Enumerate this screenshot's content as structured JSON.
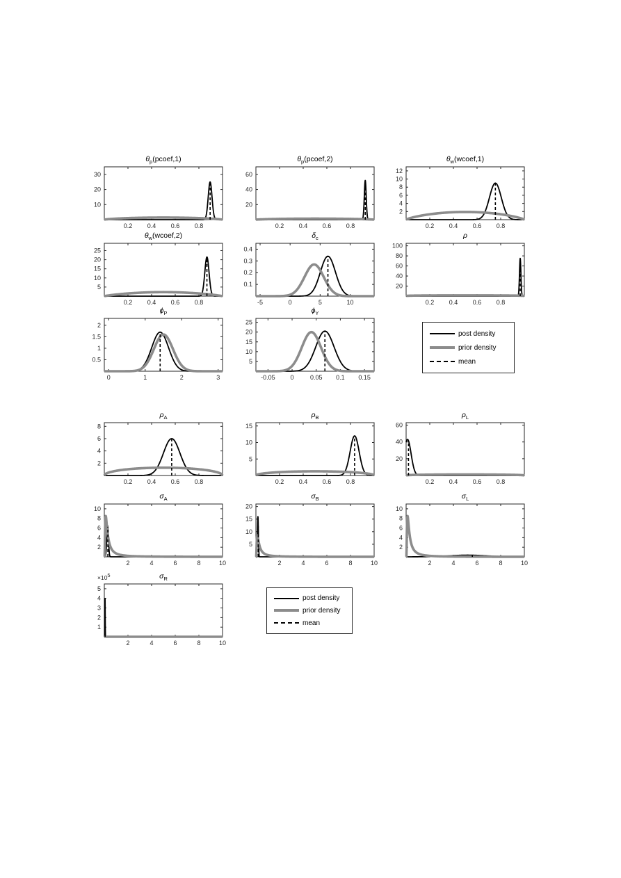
{
  "colors": {
    "post": "#000000",
    "prior": "#8c8c8c",
    "mean": "#000000",
    "axis": "#262626",
    "background": "#ffffff"
  },
  "legend": {
    "entries": [
      {
        "id": "post",
        "label": "post density"
      },
      {
        "id": "prior",
        "label": "prior density"
      },
      {
        "id": "mean",
        "label": "mean"
      }
    ]
  },
  "chart_data": {
    "type": "line",
    "description": "Grid of prior and posterior parameter density subplots with posterior-mean markers (Bayesian estimation output)",
    "legend_entries": [
      "post density",
      "prior density",
      "mean"
    ],
    "plots": [
      {
        "id": "theta-p-pcoef-1",
        "title": [
          {
            "t": "θ",
            "i": 1
          },
          {
            "t": "p",
            "sub": 1
          },
          {
            "t": "(pcoef,1)"
          }
        ],
        "xlim": [
          0,
          1
        ],
        "ylim": [
          0,
          35
        ],
        "xticks": [
          {
            "v": 0.2,
            "l": "0.2"
          },
          {
            "v": 0.4,
            "l": "0.4"
          },
          {
            "v": 0.6,
            "l": "0.6"
          },
          {
            "v": 0.8,
            "l": "0.8"
          }
        ],
        "yticks": [
          {
            "v": 10,
            "l": "10"
          },
          {
            "v": 20,
            "l": "20"
          },
          {
            "v": 30,
            "l": "30"
          }
        ],
        "prior": {
          "type": "beta",
          "peak": 1.4,
          "power": 0.7
        },
        "post": {
          "type": "gauss",
          "center": 0.895,
          "sigma": 0.016,
          "peak": 25
        },
        "mean": 0.895
      },
      {
        "id": "theta-p-pcoef-2",
        "title": [
          {
            "t": "θ",
            "i": 1
          },
          {
            "t": "p",
            "sub": 1
          },
          {
            "t": "(pcoef,2)"
          }
        ],
        "xlim": [
          0,
          1
        ],
        "ylim": [
          0,
          70
        ],
        "xticks": [
          {
            "v": 0.2,
            "l": "0.2"
          },
          {
            "v": 0.4,
            "l": "0.4"
          },
          {
            "v": 0.6,
            "l": "0.6"
          },
          {
            "v": 0.8,
            "l": "0.8"
          }
        ],
        "yticks": [
          {
            "v": 20,
            "l": "20"
          },
          {
            "v": 40,
            "l": "40"
          },
          {
            "v": 60,
            "l": "60"
          }
        ],
        "prior": {
          "type": "beta",
          "peak": 1.4,
          "power": 0.7
        },
        "post": {
          "type": "gauss",
          "center": 0.925,
          "sigma": 0.008,
          "peak": 52
        },
        "mean": 0.925
      },
      {
        "id": "theta-w-wcoef-1",
        "title": [
          {
            "t": "θ",
            "i": 1
          },
          {
            "t": "w",
            "sub": 1
          },
          {
            "t": "(wcoef,1)"
          }
        ],
        "xlim": [
          0,
          1
        ],
        "ylim": [
          0,
          13
        ],
        "xticks": [
          {
            "v": 0.2,
            "l": "0.2"
          },
          {
            "v": 0.4,
            "l": "0.4"
          },
          {
            "v": 0.6,
            "l": "0.6"
          },
          {
            "v": 0.8,
            "l": "0.8"
          }
        ],
        "yticks": [
          {
            "v": 2,
            "l": "2"
          },
          {
            "v": 4,
            "l": "4"
          },
          {
            "v": 6,
            "l": "6"
          },
          {
            "v": 8,
            "l": "8"
          },
          {
            "v": 10,
            "l": "10"
          },
          {
            "v": 12,
            "l": "12"
          }
        ],
        "prior": {
          "type": "beta",
          "peak": 1.9,
          "power": 0.8
        },
        "post": {
          "type": "gauss",
          "center": 0.755,
          "sigma": 0.05,
          "peak": 9
        },
        "mean": 0.755
      },
      {
        "id": "theta-w-wcoef-2",
        "title": [
          {
            "t": "θ",
            "i": 1
          },
          {
            "t": "w",
            "sub": 1
          },
          {
            "t": "(wcoef,2)"
          }
        ],
        "xlim": [
          0,
          1
        ],
        "ylim": [
          0,
          29
        ],
        "xticks": [
          {
            "v": 0.2,
            "l": "0.2"
          },
          {
            "v": 0.4,
            "l": "0.4"
          },
          {
            "v": 0.6,
            "l": "0.6"
          },
          {
            "v": 0.8,
            "l": "0.8"
          }
        ],
        "yticks": [
          {
            "v": 5,
            "l": "5"
          },
          {
            "v": 10,
            "l": "10"
          },
          {
            "v": 15,
            "l": "15"
          },
          {
            "v": 20,
            "l": "20"
          },
          {
            "v": 25,
            "l": "25"
          }
        ],
        "prior": {
          "type": "beta",
          "peak": 2.2,
          "power": 0.9
        },
        "post": {
          "type": "gauss",
          "center": 0.868,
          "sigma": 0.018,
          "peak": 21.5
        },
        "mean": 0.868
      },
      {
        "id": "delta-c",
        "title": [
          {
            "t": "δ",
            "i": 1
          },
          {
            "t": "c",
            "sub": 1
          }
        ],
        "xlim": [
          -5.7,
          14
        ],
        "ylim": [
          0,
          0.45
        ],
        "xticks": [
          {
            "v": -5,
            "l": "-5"
          },
          {
            "v": 0,
            "l": "0"
          },
          {
            "v": 5,
            "l": "5"
          },
          {
            "v": 10,
            "l": "10"
          }
        ],
        "yticks": [
          {
            "v": 0.1,
            "l": "0.1"
          },
          {
            "v": 0.2,
            "l": "0.2"
          },
          {
            "v": 0.3,
            "l": "0.3"
          },
          {
            "v": 0.4,
            "l": "0.4"
          }
        ],
        "prior": {
          "type": "gauss",
          "center": 4,
          "sigma": 1.6,
          "peak": 0.27
        },
        "post": {
          "type": "gauss",
          "center": 6.3,
          "sigma": 1.25,
          "peak": 0.34
        },
        "mean": 6.3
      },
      {
        "id": "rho",
        "title": [
          {
            "t": "ρ",
            "i": 1
          }
        ],
        "xlim": [
          0,
          1
        ],
        "ylim": [
          0,
          105
        ],
        "xticks": [
          {
            "v": 0.2,
            "l": "0.2"
          },
          {
            "v": 0.4,
            "l": "0.4"
          },
          {
            "v": 0.6,
            "l": "0.6"
          },
          {
            "v": 0.8,
            "l": "0.8"
          }
        ],
        "yticks": [
          {
            "v": 20,
            "l": "20"
          },
          {
            "v": 40,
            "l": "40"
          },
          {
            "v": 60,
            "l": "60"
          },
          {
            "v": 80,
            "l": "80"
          },
          {
            "v": 100,
            "l": "100"
          }
        ],
        "prior": {
          "type": "beta",
          "peak": 1.5,
          "power": 0.25
        },
        "post": {
          "type": "gauss",
          "center": 0.965,
          "sigma": 0.006,
          "peak": 75
        },
        "mean": 0.965
      },
      {
        "id": "phi-P",
        "title": [
          {
            "t": "ϕ",
            "i": 1
          },
          {
            "t": "P",
            "sub": 1
          }
        ],
        "xlim": [
          -0.12,
          3.12
        ],
        "ylim": [
          0,
          2.3
        ],
        "xticks": [
          {
            "v": 0,
            "l": "0"
          },
          {
            "v": 1,
            "l": "1"
          },
          {
            "v": 2,
            "l": "2"
          },
          {
            "v": 3,
            "l": "3"
          }
        ],
        "yticks": [
          {
            "v": 0.5,
            "l": "0.5"
          },
          {
            "v": 1,
            "l": "1"
          },
          {
            "v": 1.5,
            "l": "1.5"
          },
          {
            "v": 2,
            "l": "2"
          }
        ],
        "prior": {
          "type": "gauss",
          "center": 1.5,
          "sigma": 0.26,
          "peak": 1.6
        },
        "post": {
          "type": "gauss",
          "center": 1.41,
          "sigma": 0.23,
          "peak": 1.7
        },
        "mean": 1.41
      },
      {
        "id": "phi-Y",
        "title": [
          {
            "t": "ϕ",
            "i": 1
          },
          {
            "t": "Y",
            "sub": 1
          }
        ],
        "xlim": [
          -0.075,
          0.17
        ],
        "ylim": [
          0,
          27
        ],
        "xticks": [
          {
            "v": -0.05,
            "l": "-0.05"
          },
          {
            "v": 0,
            "l": "0"
          },
          {
            "v": 0.05,
            "l": "0.05"
          },
          {
            "v": 0.1,
            "l": "0.1"
          },
          {
            "v": 0.15,
            "l": "0.15"
          }
        ],
        "yticks": [
          {
            "v": 5,
            "l": "5"
          },
          {
            "v": 10,
            "l": "10"
          },
          {
            "v": 15,
            "l": "15"
          },
          {
            "v": 20,
            "l": "20"
          },
          {
            "v": 25,
            "l": "25"
          }
        ],
        "prior": {
          "type": "gauss",
          "center": 0.04,
          "sigma": 0.02,
          "peak": 20
        },
        "post": {
          "type": "gauss",
          "center": 0.068,
          "sigma": 0.019,
          "peak": 20.5
        },
        "mean": 0.068
      },
      {
        "id": "rho-A",
        "title": [
          {
            "t": "ρ",
            "i": 1
          },
          {
            "t": "A",
            "sub": 1
          }
        ],
        "xlim": [
          0,
          1
        ],
        "ylim": [
          0,
          8.6
        ],
        "xticks": [
          {
            "v": 0.2,
            "l": "0.2"
          },
          {
            "v": 0.4,
            "l": "0.4"
          },
          {
            "v": 0.6,
            "l": "0.6"
          },
          {
            "v": 0.8,
            "l": "0.8"
          }
        ],
        "yticks": [
          {
            "v": 2,
            "l": "2"
          },
          {
            "v": 4,
            "l": "4"
          },
          {
            "v": 6,
            "l": "6"
          },
          {
            "v": 8,
            "l": "8"
          }
        ],
        "prior": {
          "type": "beta",
          "peak": 1.27,
          "power": 0.5
        },
        "post": {
          "type": "gauss",
          "center": 0.57,
          "sigma": 0.07,
          "peak": 6
        },
        "mean": 0.57
      },
      {
        "id": "rho-B",
        "title": [
          {
            "t": "ρ",
            "i": 1
          },
          {
            "t": "B",
            "sub": 1
          }
        ],
        "xlim": [
          0,
          1
        ],
        "ylim": [
          0,
          16
        ],
        "xticks": [
          {
            "v": 0.2,
            "l": "0.2"
          },
          {
            "v": 0.4,
            "l": "0.4"
          },
          {
            "v": 0.6,
            "l": "0.6"
          },
          {
            "v": 0.8,
            "l": "0.8"
          }
        ],
        "yticks": [
          {
            "v": 5,
            "l": "5"
          },
          {
            "v": 10,
            "l": "10"
          },
          {
            "v": 15,
            "l": "15"
          }
        ],
        "prior": {
          "type": "beta",
          "peak": 1.27,
          "power": 0.5
        },
        "post": {
          "type": "gauss",
          "center": 0.835,
          "sigma": 0.038,
          "peak": 12
        },
        "mean": 0.835
      },
      {
        "id": "rho-L",
        "title": [
          {
            "t": "ρ",
            "i": 1
          },
          {
            "t": "L",
            "sub": 1
          }
        ],
        "xlim": [
          0,
          1
        ],
        "ylim": [
          0,
          63
        ],
        "xticks": [
          {
            "v": 0.2,
            "l": "0.2"
          },
          {
            "v": 0.4,
            "l": "0.4"
          },
          {
            "v": 0.6,
            "l": "0.6"
          },
          {
            "v": 0.8,
            "l": "0.8"
          }
        ],
        "yticks": [
          {
            "v": 20,
            "l": "20"
          },
          {
            "v": 40,
            "l": "40"
          },
          {
            "v": 60,
            "l": "60"
          }
        ],
        "prior": {
          "type": "beta",
          "peak": 1.2,
          "power": 0.4
        },
        "post": {
          "type": "gauss",
          "center": 0.012,
          "sigma": 0.03,
          "peak": 43
        },
        "mean": 0.02
      },
      {
        "id": "sigma-A",
        "title": [
          {
            "t": "σ",
            "i": 1
          },
          {
            "t": "A",
            "sub": 1
          }
        ],
        "xlim": [
          0,
          10
        ],
        "ylim": [
          0,
          11
        ],
        "xticks": [
          {
            "v": 2,
            "l": "2"
          },
          {
            "v": 4,
            "l": "4"
          },
          {
            "v": 6,
            "l": "6"
          },
          {
            "v": 8,
            "l": "8"
          },
          {
            "v": 10,
            "l": "10"
          }
        ],
        "yticks": [
          {
            "v": 2,
            "l": "2"
          },
          {
            "v": 4,
            "l": "4"
          },
          {
            "v": 6,
            "l": "6"
          },
          {
            "v": 8,
            "l": "8"
          },
          {
            "v": 10,
            "l": "10"
          }
        ],
        "prior": {
          "type": "invgamma",
          "s": 0.12,
          "peak": 8.5
        },
        "post": {
          "type": "gauss",
          "center": 0.28,
          "sigma": 0.07,
          "peak": 6.5
        },
        "mean": 0.3
      },
      {
        "id": "sigma-B",
        "title": [
          {
            "t": "σ",
            "i": 1
          },
          {
            "t": "B",
            "sub": 1
          }
        ],
        "xlim": [
          0,
          10
        ],
        "ylim": [
          0,
          21
        ],
        "xticks": [
          {
            "v": 2,
            "l": "2"
          },
          {
            "v": 4,
            "l": "4"
          },
          {
            "v": 6,
            "l": "6"
          },
          {
            "v": 8,
            "l": "8"
          },
          {
            "v": 10,
            "l": "10"
          }
        ],
        "yticks": [
          {
            "v": 5,
            "l": "5"
          },
          {
            "v": 10,
            "l": "10"
          },
          {
            "v": 15,
            "l": "15"
          },
          {
            "v": 20,
            "l": "20"
          }
        ],
        "prior": {
          "type": "invgamma",
          "s": 0.12,
          "peak": 8.5
        },
        "post": {
          "type": "gauss",
          "center": 0.17,
          "sigma": 0.04,
          "peak": 16
        },
        "mean": 0.2
      },
      {
        "id": "sigma-L",
        "title": [
          {
            "t": "σ",
            "i": 1
          },
          {
            "t": "L",
            "sub": 1
          }
        ],
        "xlim": [
          0,
          10
        ],
        "ylim": [
          0,
          11
        ],
        "xticks": [
          {
            "v": 2,
            "l": "2"
          },
          {
            "v": 4,
            "l": "4"
          },
          {
            "v": 6,
            "l": "6"
          },
          {
            "v": 8,
            "l": "8"
          },
          {
            "v": 10,
            "l": "10"
          }
        ],
        "yticks": [
          {
            "v": 2,
            "l": "2"
          },
          {
            "v": 4,
            "l": "4"
          },
          {
            "v": 6,
            "l": "6"
          },
          {
            "v": 8,
            "l": "8"
          },
          {
            "v": 10,
            "l": "10"
          }
        ],
        "prior": {
          "type": "invgamma",
          "s": 0.12,
          "peak": 8.5
        },
        "post": {
          "type": "gauss",
          "center": 5.2,
          "sigma": 1.6,
          "peak": 0.35
        },
        "mean": 5.6
      },
      {
        "id": "sigma-R",
        "title": [
          {
            "t": "σ",
            "i": 1
          },
          {
            "t": "R",
            "sub": 1
          }
        ],
        "exp": [
          {
            "t": "×10"
          },
          {
            "t": "5",
            "sup": 1
          }
        ],
        "xlim": [
          0,
          10
        ],
        "ylim": [
          0,
          550000
        ],
        "xticks": [
          {
            "v": 2,
            "l": "2"
          },
          {
            "v": 4,
            "l": "4"
          },
          {
            "v": 6,
            "l": "6"
          },
          {
            "v": 8,
            "l": "8"
          },
          {
            "v": 10,
            "l": "10"
          }
        ],
        "yticks": [
          {
            "v": 100000,
            "l": "1"
          },
          {
            "v": 200000,
            "l": "2"
          },
          {
            "v": 300000,
            "l": "3"
          },
          {
            "v": 400000,
            "l": "4"
          },
          {
            "v": 500000,
            "l": "5"
          }
        ],
        "prior": {
          "type": "invgamma",
          "s": 0.12,
          "peak": 8.5
        },
        "post": {
          "type": "gauss",
          "center": 0.06,
          "sigma": 0.015,
          "peak": 400000
        },
        "mean": 0.07
      }
    ]
  }
}
